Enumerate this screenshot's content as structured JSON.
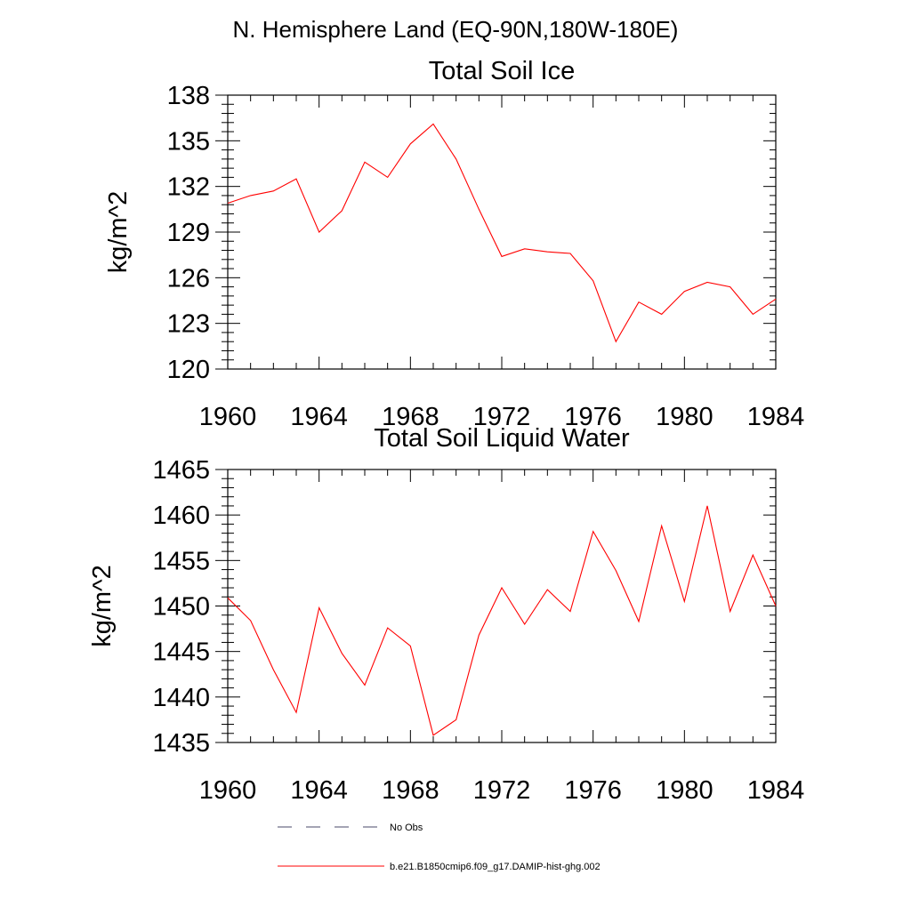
{
  "page_title": "N. Hemisphere Land (EQ-90N,180W-180E)",
  "chart_data": [
    {
      "type": "line",
      "title": "Total Soil Ice",
      "xlabel": "",
      "ylabel": "kg/m^2",
      "xlim": [
        1960,
        1984
      ],
      "ylim": [
        120,
        138
      ],
      "xticks": [
        1960,
        1964,
        1968,
        1972,
        1976,
        1980,
        1984
      ],
      "yticks": [
        120,
        123,
        126,
        129,
        132,
        135,
        138
      ],
      "grid": false,
      "series": [
        {
          "color": "#ff0000",
          "x": [
            1960,
            1961,
            1962,
            1963,
            1964,
            1965,
            1966,
            1967,
            1968,
            1969,
            1970,
            1971,
            1972,
            1973,
            1974,
            1975,
            1976,
            1977,
            1978,
            1979,
            1980,
            1981,
            1982,
            1983,
            1984
          ],
          "values": [
            130.9,
            131.4,
            131.7,
            132.5,
            129.0,
            130.4,
            133.6,
            132.6,
            134.8,
            136.1,
            133.8,
            130.5,
            127.4,
            127.9,
            127.7,
            127.6,
            125.8,
            121.8,
            124.4,
            123.6,
            125.1,
            125.7,
            125.4,
            123.6,
            124.6
          ]
        }
      ]
    },
    {
      "type": "line",
      "title": "Total Soil Liquid Water",
      "xlabel": "",
      "ylabel": "kg/m^2",
      "xlim": [
        1960,
        1984
      ],
      "ylim": [
        1435,
        1465
      ],
      "xticks": [
        1960,
        1964,
        1968,
        1972,
        1976,
        1980,
        1984
      ],
      "yticks": [
        1435,
        1440,
        1445,
        1450,
        1455,
        1460,
        1465
      ],
      "grid": false,
      "series": [
        {
          "color": "#ff0000",
          "x": [
            1960,
            1961,
            1962,
            1963,
            1964,
            1965,
            1966,
            1967,
            1968,
            1969,
            1970,
            1971,
            1972,
            1973,
            1974,
            1975,
            1976,
            1977,
            1978,
            1979,
            1980,
            1981,
            1982,
            1983,
            1984
          ],
          "values": [
            1450.9,
            1448.4,
            1443.0,
            1438.3,
            1449.8,
            1444.8,
            1441.3,
            1447.6,
            1445.6,
            1435.8,
            1437.5,
            1446.8,
            1452.0,
            1448.0,
            1451.8,
            1449.4,
            1458.2,
            1453.9,
            1448.3,
            1458.8,
            1450.5,
            1461.0,
            1449.4,
            1455.6,
            1450.0
          ]
        }
      ]
    }
  ],
  "legend": {
    "placement": "bottom-left",
    "items": [
      {
        "label": "No Obs",
        "style": "dashed",
        "color": "#4a4a6a"
      },
      {
        "label": "b.e21.B1850cmip6.f09_g17.DAMIP-hist-ghg.002",
        "style": "solid",
        "color": "#ff0000"
      }
    ]
  }
}
